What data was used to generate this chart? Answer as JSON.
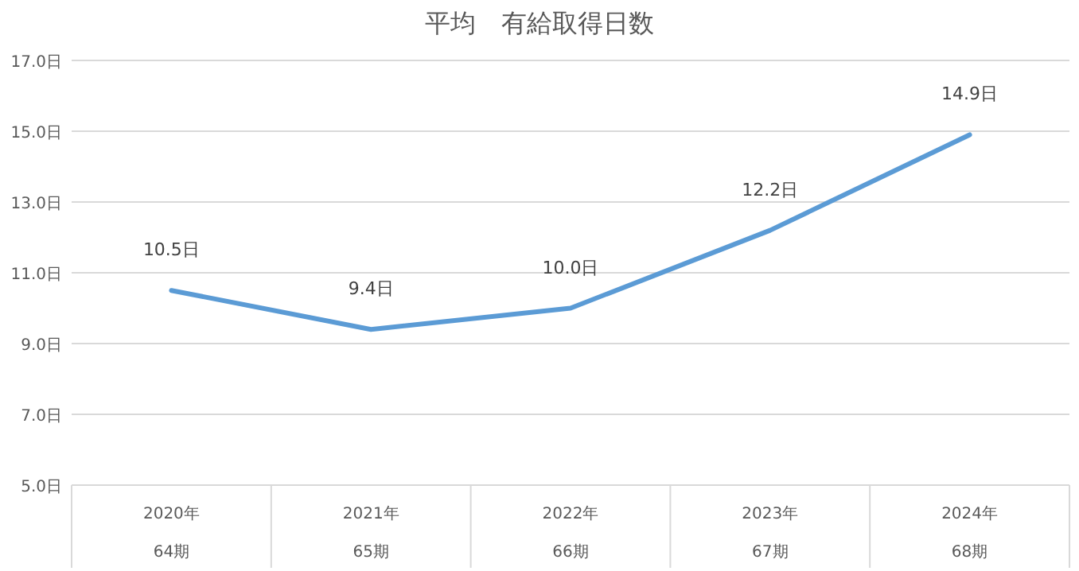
{
  "chart_data": {
    "type": "line",
    "title": "平均　有給取得日数",
    "categories": [
      "2020年\n64期",
      "2021年\n65期",
      "2022年\n66期",
      "2023年\n67期",
      "2024年\n68期"
    ],
    "series": [
      {
        "color": "#5b9bd5",
        "values": [
          10.5,
          9.4,
          10.0,
          12.2,
          14.9
        ],
        "value_labels": [
          "10.5日",
          "9.4日",
          "10.0日",
          "12.2日",
          "14.9日"
        ]
      }
    ],
    "ylim": [
      5,
      17
    ],
    "yticks": [
      {
        "value": 5,
        "label": "5.0日"
      },
      {
        "value": 7,
        "label": "7.0日"
      },
      {
        "value": 9,
        "label": "9.0日"
      },
      {
        "value": 11,
        "label": "11.0日"
      },
      {
        "value": 13,
        "label": "13.0日"
      },
      {
        "value": 15,
        "label": "15.0日"
      },
      {
        "value": 17,
        "label": "17.0日"
      }
    ],
    "grid": "y",
    "marker": "none",
    "line_style": "solid"
  }
}
